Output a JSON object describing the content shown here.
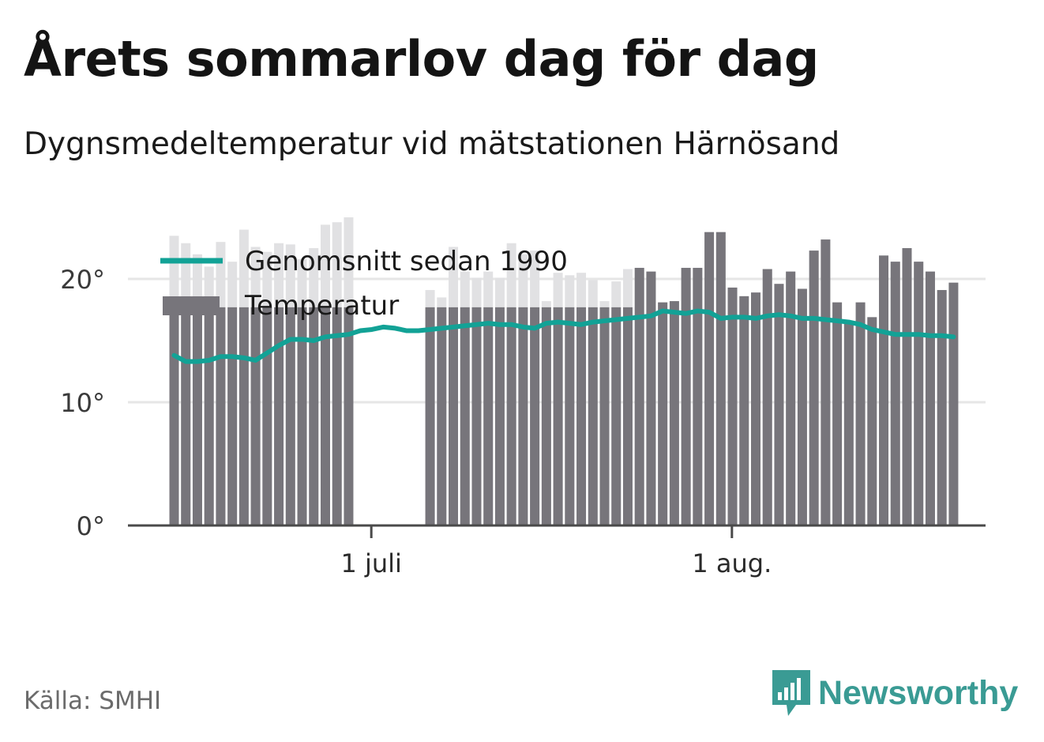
{
  "title": "Årets sommarlov dag för dag",
  "subtitle": "Dygnsmedeltemperatur vid mätstationen Härnösand",
  "source": "Källa: SMHI",
  "brand": {
    "name": "Newsworthy",
    "icon": "bar-chart-speech-bubble-icon",
    "color": "#3a9b94"
  },
  "colors": {
    "bars": "#77757b",
    "faded_bars": "#e1e1e3",
    "average_line": "#12a296",
    "axis": "#4a4a4a",
    "grid": "#e6e6e6"
  },
  "chart_data": {
    "type": "bar",
    "x_start": "2017-06-15",
    "x_ticks": [
      {
        "date": "2017-07-01",
        "label": "1 juli"
      },
      {
        "date": "2017-08-01",
        "label": "1 aug."
      }
    ],
    "y_ticks": [
      {
        "value": 0,
        "label": "0°"
      },
      {
        "value": 10,
        "label": "10°"
      },
      {
        "value": 20,
        "label": "20°"
      }
    ],
    "ylim": [
      0,
      25
    ],
    "grid": true,
    "legend": {
      "position": "top-left"
    },
    "series": [
      {
        "name": "Temperatur",
        "kind": "bar",
        "note": "null = dag utan stapel",
        "values": [
          23.5,
          22.9,
          22.0,
          21.0,
          23.0,
          21.4,
          24.0,
          22.6,
          22.2,
          22.9,
          22.8,
          21.6,
          22.5,
          24.4,
          24.6,
          25.0,
          null,
          null,
          null,
          null,
          null,
          null,
          19.1,
          18.5,
          22.6,
          20.6,
          20.1,
          20.6,
          20.1,
          22.9,
          22.0,
          22.3,
          18.2,
          20.5,
          20.3,
          20.5,
          19.9,
          18.2,
          19.8,
          20.8,
          20.9,
          20.6,
          18.1,
          18.2,
          20.9,
          20.9,
          23.8,
          23.8,
          19.3,
          18.6,
          18.9,
          20.8,
          19.6,
          20.6,
          19.2,
          22.3,
          23.2,
          18.1,
          16.6,
          18.1,
          16.9,
          21.9,
          21.4,
          22.5,
          21.4,
          20.6,
          19.1,
          19.7
        ],
        "visible_floor": 17.7
      },
      {
        "name": "Genomsnitt sedan 1990",
        "kind": "line",
        "values": [
          13.8,
          13.3,
          13.3,
          13.4,
          13.7,
          13.7,
          13.6,
          13.4,
          14.0,
          14.6,
          15.1,
          15.1,
          15.0,
          15.3,
          15.4,
          15.5,
          15.8,
          15.9,
          16.1,
          16.0,
          15.8,
          15.8,
          15.9,
          16.0,
          16.1,
          16.2,
          16.3,
          16.4,
          16.3,
          16.3,
          16.1,
          16.0,
          16.4,
          16.5,
          16.4,
          16.3,
          16.5,
          16.6,
          16.7,
          16.8,
          16.9,
          17.0,
          17.4,
          17.3,
          17.2,
          17.4,
          17.3,
          16.8,
          16.9,
          16.9,
          16.8,
          17.0,
          17.1,
          17.0,
          16.8,
          16.8,
          16.7,
          16.6,
          16.5,
          16.3,
          15.9,
          15.7,
          15.5,
          15.5,
          15.5,
          15.4,
          15.4,
          15.3
        ]
      }
    ]
  }
}
